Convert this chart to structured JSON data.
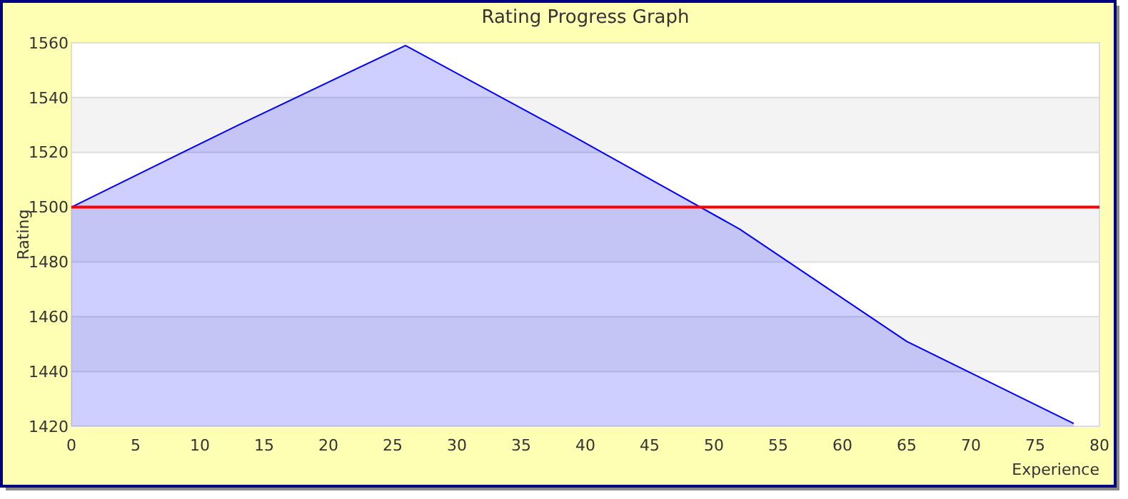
{
  "chart_data": {
    "type": "area",
    "title": "Rating Progress Graph",
    "xlabel": "Experience",
    "ylabel": "Rating",
    "x": [
      0,
      13,
      26,
      39,
      52,
      65,
      78
    ],
    "series": [
      {
        "color": "#0000ff",
        "values": [
          1500,
          1530,
          1559,
          1526,
          1492,
          1451,
          1421
        ]
      }
    ],
    "xlim": [
      0,
      80
    ],
    "xticks": [
      0,
      5,
      10,
      15,
      20,
      25,
      30,
      35,
      40,
      45,
      50,
      55,
      60,
      65,
      70,
      75,
      80
    ],
    "ylim": [
      1420,
      1560
    ],
    "yticks": [
      1420,
      1440,
      1460,
      1480,
      1500,
      1520,
      1540,
      1560
    ],
    "grid": "y",
    "ref_lines": [
      {
        "axis": "y",
        "value": 1500,
        "color": "#ff0000"
      }
    ]
  }
}
